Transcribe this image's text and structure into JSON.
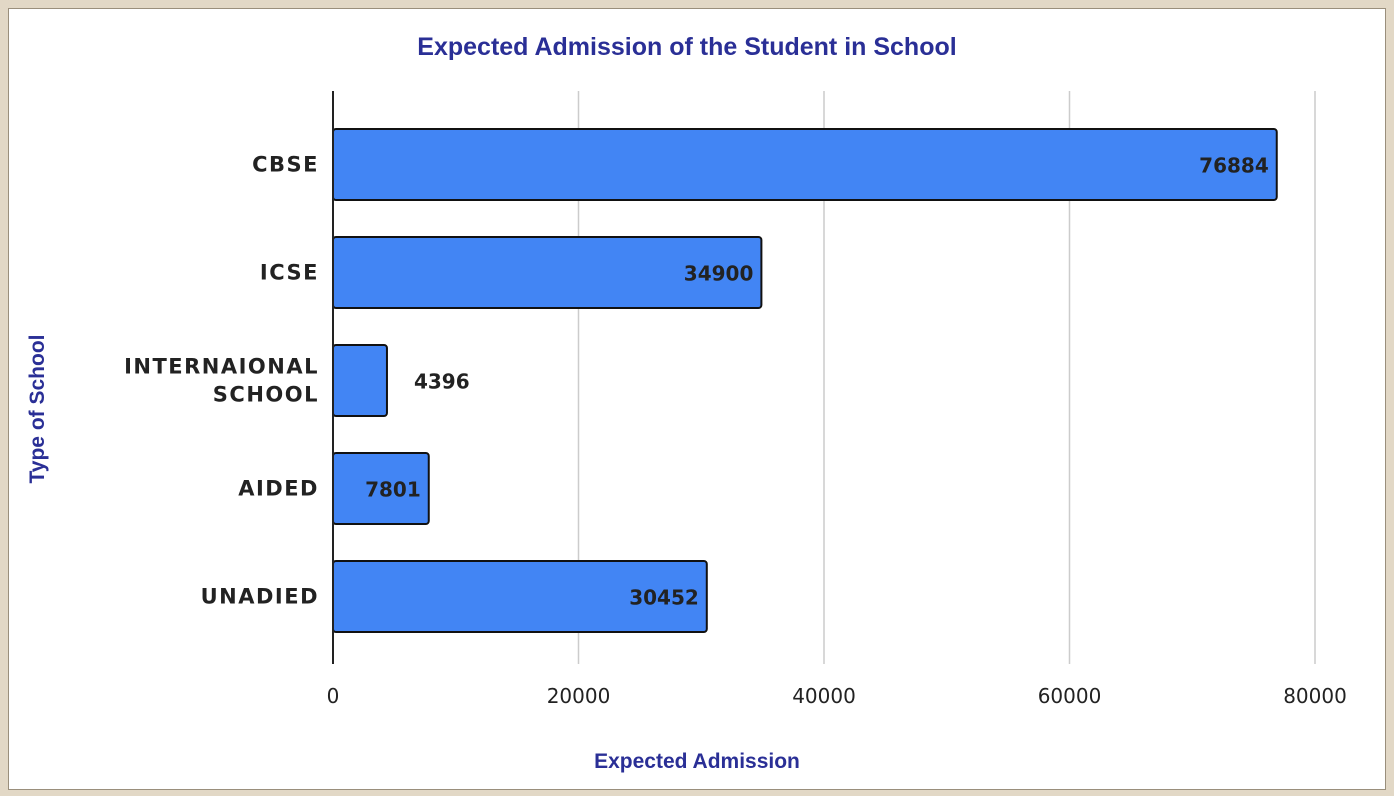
{
  "chart_data": {
    "type": "bar",
    "orientation": "horizontal",
    "title": "Expected Admission of the Student in School",
    "xlabel": "Expected Admission",
    "ylabel": "Type of School",
    "categories": [
      [
        "CBSE"
      ],
      [
        "ICSE"
      ],
      [
        "INTERNAIONAL",
        "SCHOOL"
      ],
      [
        "AIDED"
      ],
      [
        "UNADIED"
      ]
    ],
    "values": [
      76884,
      34900,
      4396,
      7801,
      30452
    ],
    "value_labels": [
      "76884",
      "34900",
      "4396",
      "7801",
      "30452"
    ],
    "xlim": [
      0,
      80000
    ],
    "xticks": [
      0,
      20000,
      40000,
      60000,
      80000
    ],
    "xtick_labels": [
      "0",
      "20000",
      "40000",
      "60000",
      "80000"
    ],
    "grid": true,
    "legend": false,
    "colors": {
      "bar": "#4285f4",
      "bar_outline": "#111111",
      "title": "#2a2f96",
      "gridline": "#cccccc",
      "axis": "#222222",
      "text": "#222222"
    }
  }
}
